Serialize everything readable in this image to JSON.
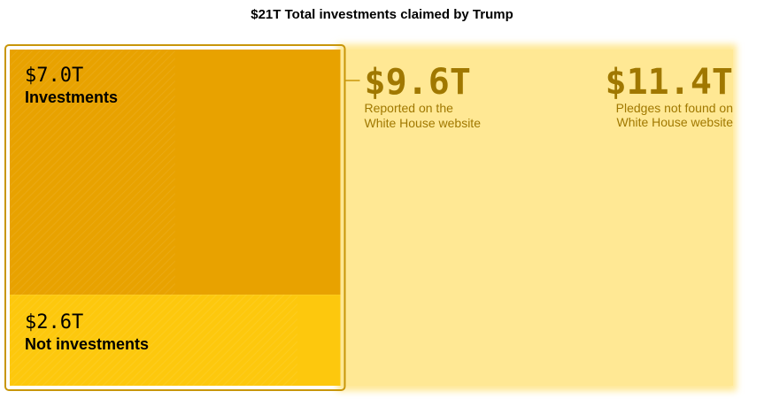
{
  "chart_data": {
    "type": "treemap",
    "title": "$21T Total investments claimed by Trump",
    "total": 21.0,
    "unit": "trillion USD",
    "groups": [
      {
        "name": "Reported on the White House website",
        "value": 9.6,
        "value_label": "$9.6T",
        "label_lines": [
          "Reported on the",
          "White House website"
        ],
        "children": [
          {
            "name": "Investments",
            "value": 7.0,
            "value_label": "$7.0T"
          },
          {
            "name": "Not investments",
            "value": 2.6,
            "value_label": "$2.6T"
          }
        ]
      },
      {
        "name": "Pledges not found on White House website",
        "value": 11.4,
        "value_label": "$11.4T",
        "label_lines": [
          "Pledges not found on",
          "White House website"
        ]
      }
    ]
  },
  "colors": {
    "investments": "#e8a200",
    "not_investments": "#fdc80d",
    "pledges": "#ffe894",
    "outline": "#c8960a",
    "label_dark": "#000000",
    "label_gold": "#a07800"
  }
}
